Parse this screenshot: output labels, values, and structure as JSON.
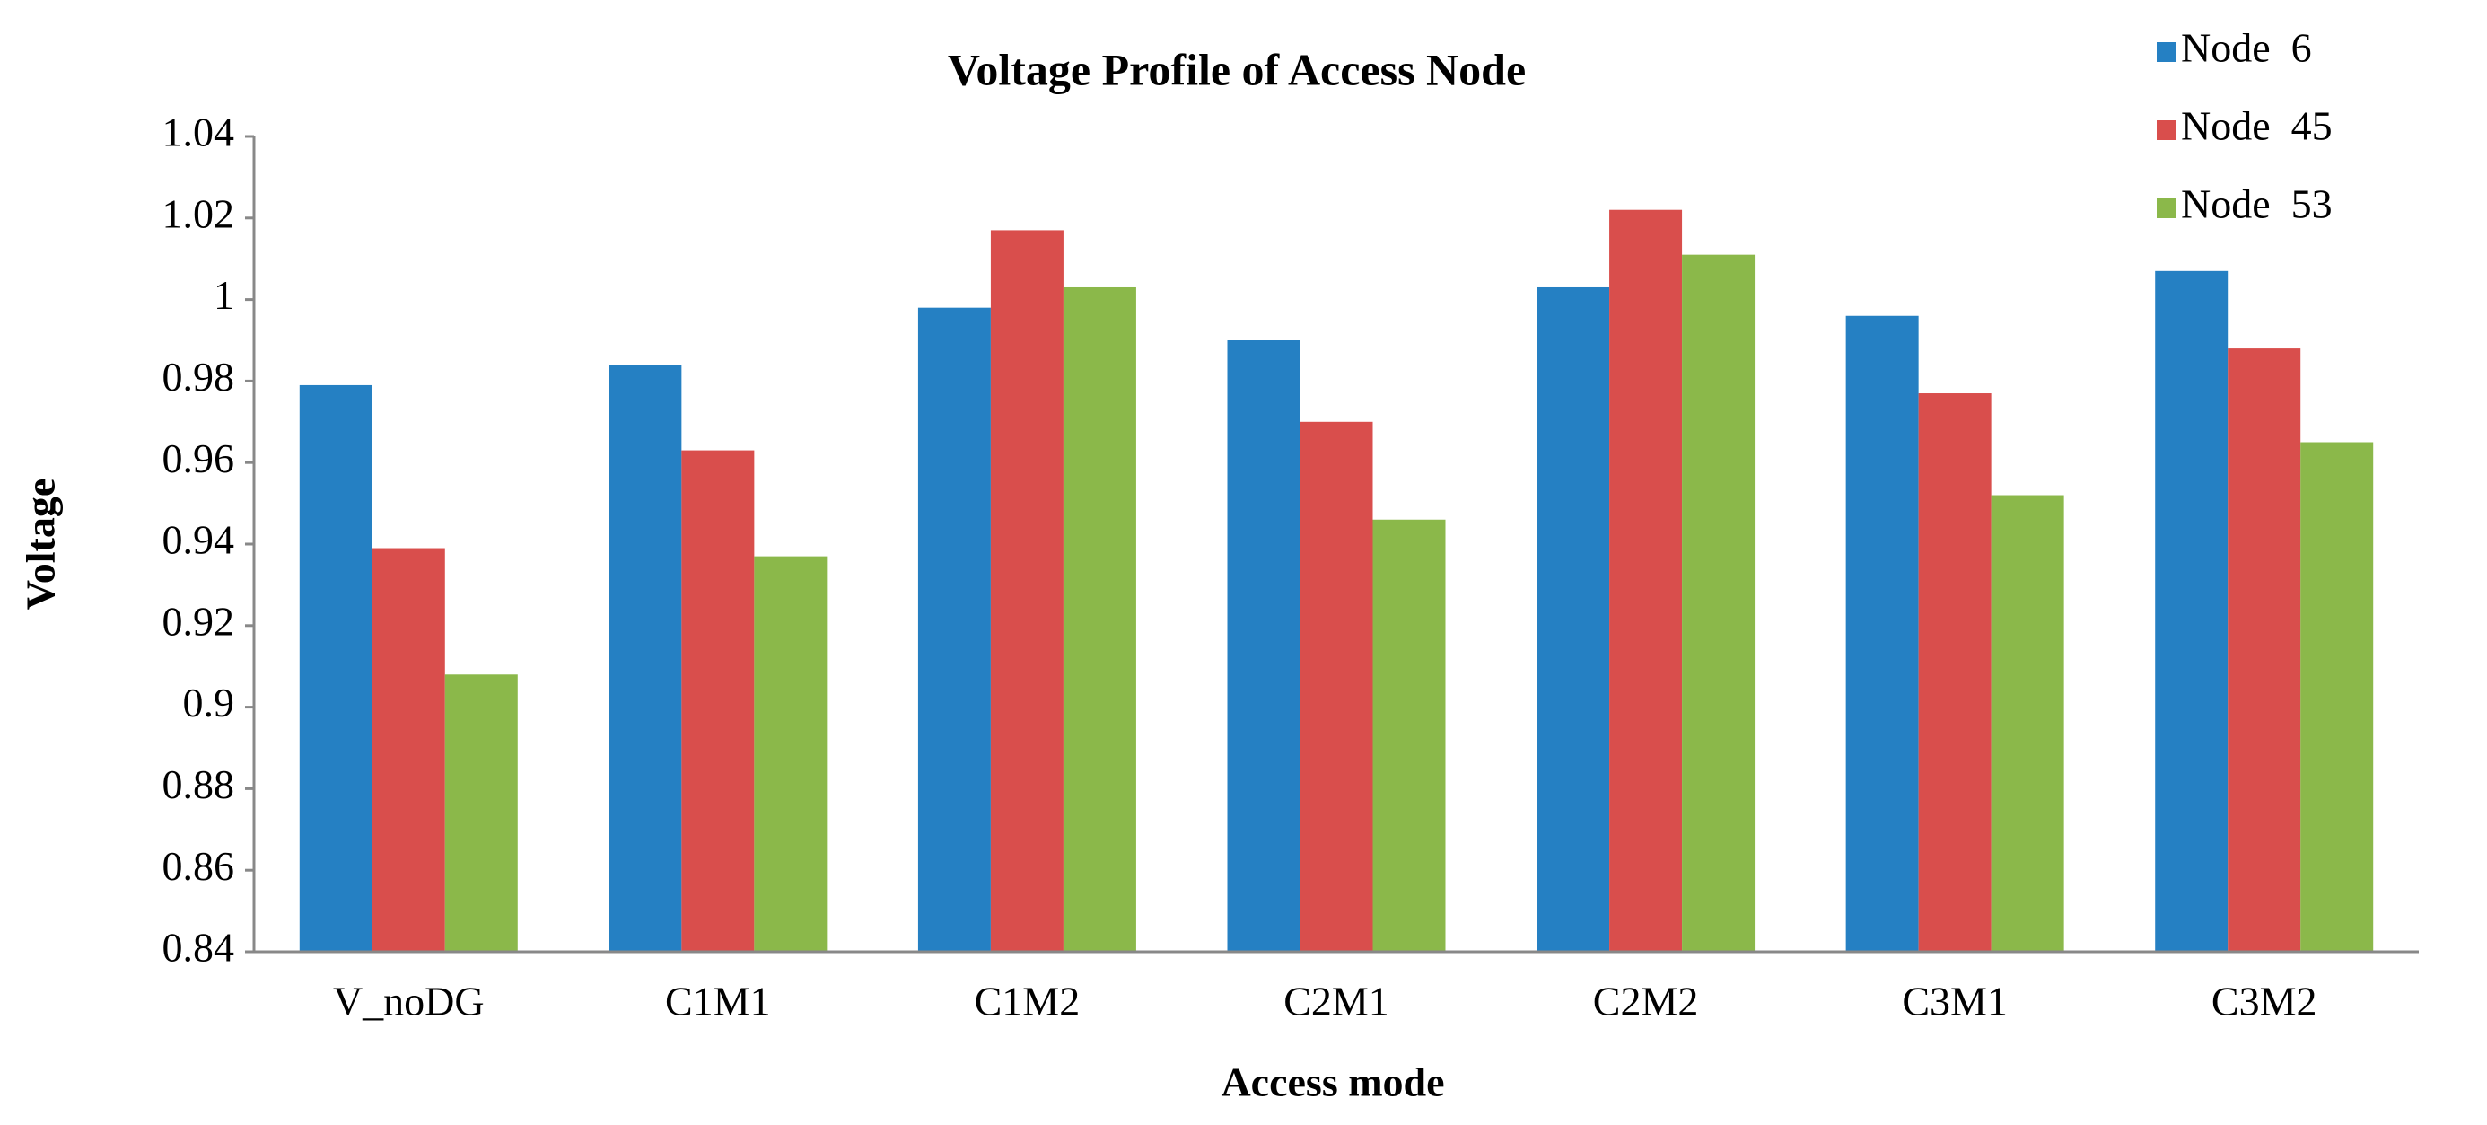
{
  "chart_data": {
    "type": "bar",
    "title": "Voltage Profile of Access Node",
    "x_label": "Access mode",
    "y_label": "Voltage",
    "categories": [
      "V_noDG",
      "C1M1",
      "C1M2",
      "C2M1",
      "C2M2",
      "C3M1",
      "C3M2"
    ],
    "series": [
      {
        "name": "Node  6",
        "color": "#2580c3",
        "values": [
          0.979,
          0.984,
          0.998,
          0.99,
          1.003,
          0.996,
          1.007
        ]
      },
      {
        "name": "Node  45",
        "color": "#d94e4c",
        "values": [
          0.939,
          0.963,
          1.017,
          0.97,
          1.022,
          0.977,
          0.988
        ]
      },
      {
        "name": "Node  53",
        "color": "#8bb84a",
        "values": [
          0.908,
          0.937,
          1.003,
          0.946,
          1.011,
          0.952,
          0.965
        ]
      }
    ],
    "ylim": [
      0.84,
      1.04
    ],
    "yticks": [
      0.84,
      0.86,
      0.88,
      0.9,
      0.92,
      0.94,
      0.96,
      0.98,
      1,
      1.02,
      1.04
    ],
    "grid": false,
    "legend": "top-right"
  }
}
